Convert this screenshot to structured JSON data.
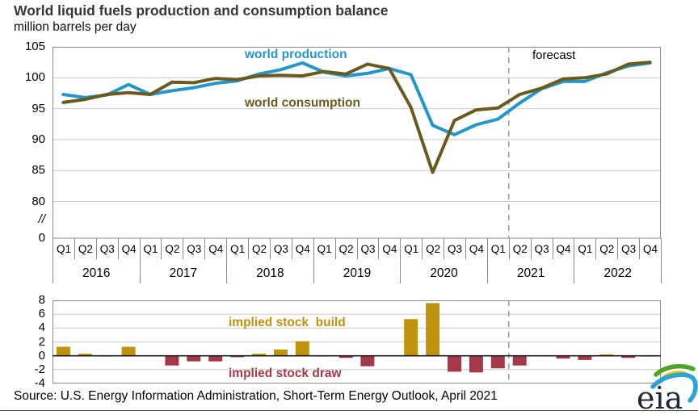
{
  "header": {
    "title": "World liquid fuels production and consumption balance",
    "subtitle": "million barrels per day"
  },
  "labels": {
    "production": "world production",
    "consumption": "world consumption",
    "forecast": "forecast",
    "stock_build": "implied stock  build",
    "stock_draw": "implied stock draw",
    "axis_break": "//"
  },
  "source": "Source: U.S. Energy Information Administration, Short-Term Energy Outlook, April 2021",
  "logo": {
    "text": "eia"
  },
  "colors": {
    "production": "#2596c8",
    "consumption": "#6a5a1f",
    "stock_build": "#c0930e",
    "stock_draw": "#a23a49",
    "gridline": "#c9c9c9",
    "axis_box": "#8a8a8a",
    "forecast_line": "#9a9a9a",
    "zero_line": "#1a1a1a"
  },
  "chart_data": [
    {
      "type": "line",
      "title": "World liquid fuels production and consumption balance",
      "ylabel": "million barrels per day",
      "x_quarters": [
        "Q1",
        "Q2",
        "Q3",
        "Q4",
        "Q1",
        "Q2",
        "Q3",
        "Q4",
        "Q1",
        "Q2",
        "Q3",
        "Q4",
        "Q1",
        "Q2",
        "Q3",
        "Q4",
        "Q1",
        "Q2",
        "Q3",
        "Q4",
        "Q1",
        "Q2",
        "Q3",
        "Q4",
        "Q1",
        "Q2",
        "Q3",
        "Q4"
      ],
      "x_years": [
        "2016",
        "2017",
        "2018",
        "2019",
        "2020",
        "2021",
        "2022"
      ],
      "ylim_visible": [
        80,
        105
      ],
      "yticks": [
        105,
        100,
        95,
        90,
        85,
        80,
        "//",
        0
      ],
      "axis_break": true,
      "grid": true,
      "forecast_starts": "2021 Q2",
      "series": [
        {
          "name": "world production",
          "values": [
            97.3,
            96.8,
            97.2,
            98.9,
            97.3,
            97.9,
            98.4,
            99.1,
            99.5,
            100.6,
            101.3,
            102.4,
            100.9,
            100.3,
            100.7,
            101.5,
            100.5,
            92.3,
            90.8,
            92.4,
            93.3,
            95.9,
            98.2,
            99.4,
            99.4,
            100.8,
            101.9,
            102.4
          ]
        },
        {
          "name": "world consumption",
          "values": [
            96.0,
            96.5,
            97.3,
            97.6,
            97.3,
            99.3,
            99.2,
            99.9,
            99.7,
            100.3,
            100.4,
            100.3,
            101.0,
            100.6,
            102.2,
            101.5,
            95.2,
            84.7,
            93.1,
            94.8,
            95.1,
            97.3,
            98.3,
            99.8,
            100.0,
            100.6,
            102.2,
            102.5
          ]
        }
      ]
    },
    {
      "type": "bar",
      "name": "implied stock change",
      "positive_label": "implied stock  build",
      "negative_label": "implied stock draw",
      "ylim": [
        -4,
        8
      ],
      "yticks": [
        8,
        6,
        4,
        2,
        0,
        -2,
        -4
      ],
      "values": [
        1.3,
        0.3,
        -0.1,
        1.3,
        0,
        -1.4,
        -0.8,
        -0.8,
        -0.2,
        0.3,
        0.9,
        2.1,
        -0.1,
        -0.3,
        -1.5,
        0,
        5.3,
        7.6,
        -2.3,
        -2.4,
        -1.8,
        -1.4,
        0,
        -0.4,
        -0.6,
        0.2,
        -0.3,
        -0.1
      ]
    }
  ]
}
